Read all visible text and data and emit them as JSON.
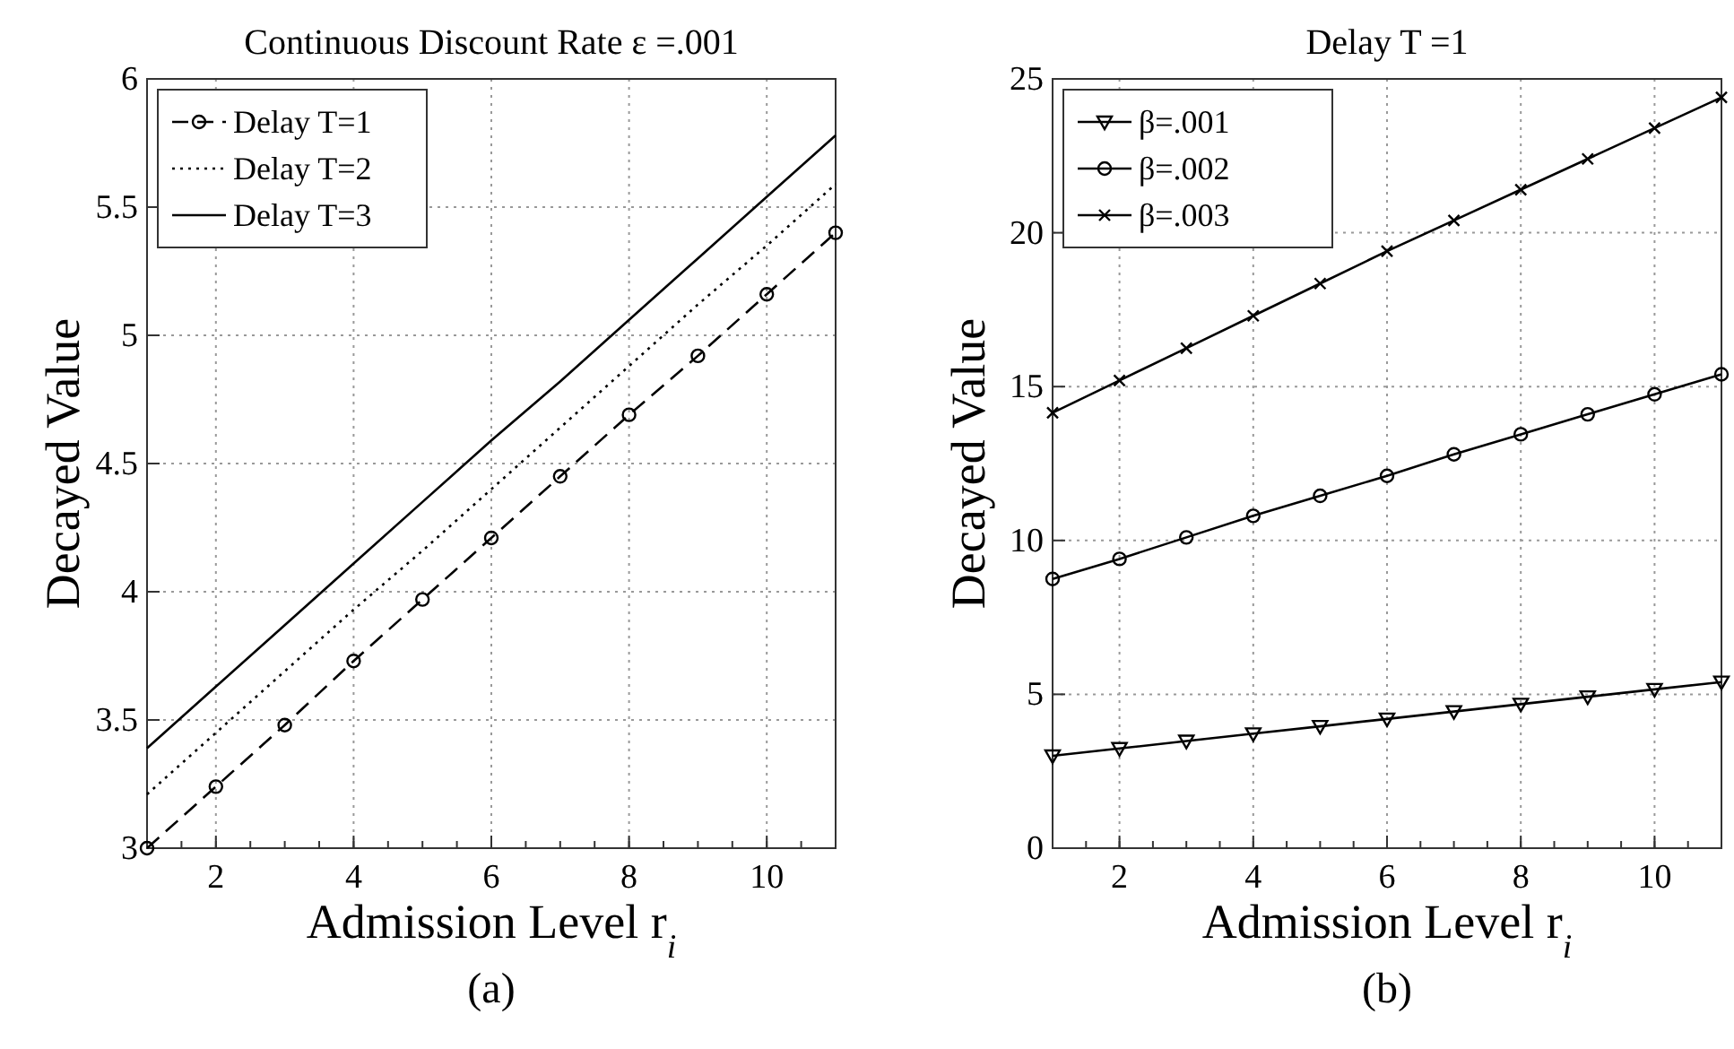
{
  "chart_data": [
    {
      "type": "line",
      "title": "Continuous Discount Rate  ε =.001",
      "xlabel": "Admission Level r$_{i}$",
      "ylabel": "Decayed Value",
      "annotations": [
        "(a)"
      ],
      "x": [
        1,
        2,
        3,
        4,
        5,
        6,
        7,
        8,
        9,
        10,
        11
      ],
      "xlim": [
        1,
        11
      ],
      "xticks": [
        2,
        4,
        6,
        8,
        10
      ],
      "ylim": [
        3,
        6
      ],
      "yticks": [
        3,
        3.5,
        4,
        4.5,
        5,
        5.5,
        6
      ],
      "grid": true,
      "legend": "top left",
      "series": [
        {
          "name": "Delay T=1",
          "color": "#000000",
          "line_style": "dashed",
          "marker": "circle",
          "values": [
            3,
            3.24,
            3.48,
            3.73,
            3.97,
            4.21,
            4.45,
            4.69,
            4.92,
            5.16,
            5.4
          ]
        },
        {
          "name": "Delay T=2",
          "color": "#000000",
          "line_style": "dotted",
          "marker": "none",
          "values": [
            3.21,
            3.45,
            3.69,
            3.93,
            4.16,
            4.4,
            4.64,
            4.88,
            5.12,
            5.35,
            5.59
          ]
        },
        {
          "name": "Delay T=3",
          "color": "#000000",
          "line_style": "solid",
          "marker": "none",
          "values": [
            3.39,
            3.63,
            3.87,
            4.11,
            4.35,
            4.59,
            4.82,
            5.06,
            5.3,
            5.54,
            5.78
          ]
        }
      ]
    },
    {
      "type": "line",
      "title": "Delay T =1",
      "xlabel": "Admission Level r$_{i}$",
      "ylabel": "Decayed Value",
      "annotations": [
        "(b)"
      ],
      "x": [
        1,
        2,
        3,
        4,
        5,
        6,
        7,
        8,
        9,
        10,
        11
      ],
      "xlim": [
        1,
        11
      ],
      "xticks": [
        2,
        4,
        6,
        8,
        10
      ],
      "ylim": [
        0,
        25
      ],
      "yticks": [
        0,
        5,
        10,
        15,
        20,
        25
      ],
      "grid": true,
      "legend": "top left",
      "series": [
        {
          "name": "β=.001",
          "color": "#000000",
          "line_style": "solid",
          "marker": "triangle",
          "values": [
            3,
            3.24,
            3.48,
            3.72,
            3.96,
            4.2,
            4.44,
            4.68,
            4.92,
            5.16,
            5.4
          ]
        },
        {
          "name": "β=.002",
          "color": "#000000",
          "line_style": "solid",
          "marker": "circle",
          "values": [
            8.75,
            9.4,
            10.1,
            10.8,
            11.45,
            12.1,
            12.8,
            13.45,
            14.1,
            14.75,
            15.4
          ]
        },
        {
          "name": "β=.003",
          "color": "#000000",
          "line_style": "solid",
          "marker": "cross",
          "values": [
            14.15,
            15.2,
            16.25,
            17.3,
            18.35,
            19.4,
            20.4,
            21.4,
            22.4,
            23.4,
            24.4
          ]
        }
      ]
    }
  ]
}
